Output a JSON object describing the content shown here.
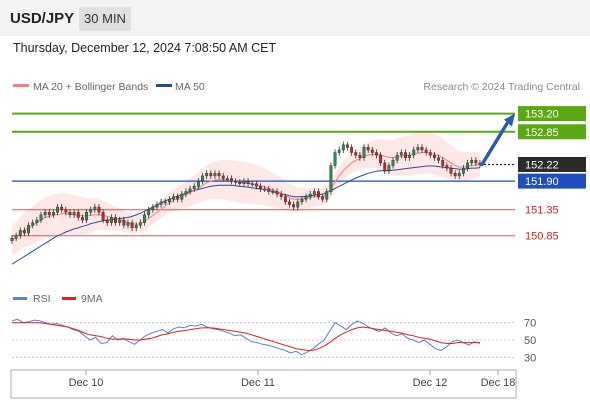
{
  "header": {
    "symbol": "USD/JPY",
    "timeframe": "30 MIN",
    "datetime": "Thursday, December 12, 2024 7:08:50 AM CET"
  },
  "legend": {
    "items": [
      {
        "label": "MA 20 + Bollinger Bands",
        "color": "#f08080"
      },
      {
        "label": "MA 50",
        "color": "#2a4d8f"
      }
    ],
    "credit": "Research © 2024 Trading Central"
  },
  "rsi_legend": {
    "items": [
      {
        "label": "RSI",
        "color": "#5b7fd6"
      },
      {
        "label": "9MA",
        "color": "#e02020"
      }
    ]
  },
  "chart_data": [
    {
      "type": "candlestick",
      "title": "",
      "ylim": [
        149.9,
        153.5
      ],
      "x_ticks": [
        "Dec 10",
        "Dec 11",
        "Dec 12",
        "Dec 18"
      ],
      "levels": [
        {
          "value": 153.2,
          "label": "153.20",
          "style": "resistance",
          "color": "#5aa812"
        },
        {
          "value": 152.85,
          "label": "152.85",
          "style": "resistance",
          "color": "#5aa812"
        },
        {
          "value": 152.22,
          "label": "152.22",
          "style": "current",
          "color": "#2b2b2b"
        },
        {
          "value": 151.9,
          "label": "151.90",
          "style": "pivot",
          "color": "#1f4fbf"
        },
        {
          "value": 151.35,
          "label": "151.35",
          "style": "support",
          "color": "#cc2222"
        },
        {
          "value": 150.85,
          "label": "150.85",
          "style": "support",
          "color": "#cc2222"
        }
      ],
      "forecast_arrow": {
        "from": 152.22,
        "to": 153.2,
        "color": "#2a5caa"
      },
      "candles_close": [
        150.8,
        150.85,
        150.95,
        150.9,
        151.05,
        151.1,
        151.15,
        151.25,
        151.3,
        151.25,
        151.3,
        151.4,
        151.35,
        151.3,
        151.25,
        151.3,
        151.2,
        151.15,
        151.3,
        151.35,
        151.4,
        151.3,
        151.15,
        151.1,
        151.2,
        151.1,
        151.15,
        151.05,
        151.1,
        151.0,
        151.05,
        151.1,
        151.25,
        151.35,
        151.4,
        151.45,
        151.5,
        151.5,
        151.55,
        151.6,
        151.55,
        151.65,
        151.7,
        151.75,
        151.8,
        151.9,
        152.0,
        152.05,
        152.0,
        152.05,
        152.0,
        151.95,
        151.95,
        151.9,
        151.88,
        151.85,
        151.9,
        151.85,
        151.85,
        151.8,
        151.75,
        151.75,
        151.7,
        151.7,
        151.65,
        151.6,
        151.5,
        151.45,
        151.4,
        151.5,
        151.55,
        151.6,
        151.65,
        151.7,
        151.6,
        151.55,
        151.7,
        152.2,
        152.45,
        152.5,
        152.6,
        152.55,
        152.45,
        152.4,
        152.35,
        152.55,
        152.5,
        152.45,
        152.4,
        152.25,
        152.1,
        152.2,
        152.3,
        152.4,
        152.45,
        152.35,
        152.4,
        152.5,
        152.55,
        152.5,
        152.45,
        152.4,
        152.35,
        152.3,
        152.2,
        152.15,
        152.05,
        152.0,
        152.05,
        152.15,
        152.25,
        152.3,
        152.25,
        152.22
      ],
      "ma20_approx": [
        150.75,
        150.82,
        150.9,
        150.96,
        151.0,
        151.05,
        151.1,
        151.15,
        151.2,
        151.22,
        151.24,
        151.26,
        151.27,
        151.27,
        151.26,
        151.25,
        151.24,
        151.23,
        151.23,
        151.24,
        151.25,
        151.25,
        151.24,
        151.22,
        151.2,
        151.18,
        151.16,
        151.13,
        151.1,
        151.08,
        151.07,
        151.08,
        151.12,
        151.18,
        151.24,
        151.3,
        151.36,
        151.42,
        151.48,
        151.53,
        151.57,
        151.6,
        151.64,
        151.68,
        151.72,
        151.77,
        151.82,
        151.87,
        151.9,
        151.92,
        151.93,
        151.93,
        151.92,
        151.91,
        151.89,
        151.88,
        151.87,
        151.86,
        151.85,
        151.83,
        151.81,
        151.79,
        151.76,
        151.73,
        151.7,
        151.66,
        151.62,
        151.58,
        151.55,
        151.55,
        151.56,
        151.57,
        151.58,
        151.6,
        151.6,
        151.6,
        151.65,
        151.75,
        151.88,
        152.0,
        152.1,
        152.18,
        152.25,
        152.3,
        152.33,
        152.38,
        152.4,
        152.41,
        152.42,
        152.41,
        152.38,
        152.36,
        152.35,
        152.36,
        152.38,
        152.39,
        152.4,
        152.42,
        152.44,
        152.45,
        152.45,
        152.44,
        152.42,
        152.39,
        152.35,
        152.3,
        152.25,
        152.2,
        152.17,
        152.17,
        152.18,
        152.2,
        152.21,
        152.22
      ],
      "ma50_approx": [
        150.3,
        150.35,
        150.4,
        150.45,
        150.5,
        150.55,
        150.6,
        150.65,
        150.7,
        150.75,
        150.8,
        150.85,
        150.88,
        150.92,
        150.95,
        150.98,
        151.0,
        151.03,
        151.05,
        151.08,
        151.1,
        151.12,
        151.14,
        151.15,
        151.16,
        151.17,
        151.18,
        151.19,
        151.2,
        151.22,
        151.25,
        151.28,
        151.32,
        151.36,
        151.4,
        151.44,
        151.48,
        151.52,
        151.55,
        151.58,
        151.61,
        151.64,
        151.67,
        151.7,
        151.72,
        151.74,
        151.76,
        151.78,
        151.8,
        151.81,
        151.82,
        151.82,
        151.82,
        151.82,
        151.81,
        151.8,
        151.79,
        151.78,
        151.77,
        151.76,
        151.75,
        151.74,
        151.72,
        151.7,
        151.68,
        151.66,
        151.64,
        151.62,
        151.6,
        151.6,
        151.6,
        151.61,
        151.62,
        151.63,
        151.64,
        151.65,
        151.68,
        151.72,
        151.76,
        151.8,
        151.84,
        151.88,
        151.92,
        151.96,
        151.99,
        152.02,
        152.05,
        152.07,
        152.09,
        152.1,
        152.1,
        152.1,
        152.11,
        152.12,
        152.13,
        152.14,
        152.15,
        152.16,
        152.17,
        152.18,
        152.19,
        152.19,
        152.19,
        152.18,
        152.17,
        152.16,
        152.15,
        152.14,
        152.13,
        152.13,
        152.14,
        152.15,
        152.15,
        152.16
      ]
    },
    {
      "type": "line",
      "title": "",
      "ylim": [
        20,
        80
      ],
      "y_ticks": [
        70,
        50,
        30
      ],
      "series": [
        {
          "name": "RSI",
          "color": "#5b7fd6",
          "values": [
            72,
            74,
            70,
            71,
            73,
            72,
            70,
            68,
            69,
            67,
            65,
            62,
            60,
            55,
            50,
            53,
            46,
            47,
            55,
            50,
            52,
            48,
            45,
            50,
            55,
            58,
            60,
            62,
            58,
            63,
            65,
            64,
            67,
            66,
            68,
            65,
            63,
            62,
            60,
            58,
            55,
            56,
            52,
            48,
            47,
            45,
            44,
            42,
            40,
            38,
            35,
            37,
            33,
            36,
            40,
            45,
            50,
            60,
            70,
            66,
            62,
            68,
            72,
            69,
            65,
            62,
            60,
            64,
            58,
            55,
            57,
            52,
            50,
            47,
            50,
            45,
            40,
            38,
            42,
            48,
            50,
            47,
            44,
            48,
            46
          ]
        },
        {
          "name": "9MA",
          "color": "#e02020",
          "values": [
            70,
            70,
            70,
            70,
            70,
            70,
            69,
            68,
            67,
            66,
            65,
            63,
            61,
            58,
            56,
            55,
            54,
            52,
            51,
            51,
            51,
            51,
            50,
            50,
            51,
            52,
            54,
            56,
            57,
            59,
            60,
            61,
            62,
            63,
            64,
            64,
            64,
            63,
            62,
            61,
            60,
            59,
            58,
            56,
            54,
            52,
            50,
            48,
            46,
            44,
            42,
            40,
            39,
            38,
            38,
            40,
            43,
            47,
            52,
            56,
            59,
            62,
            64,
            65,
            64,
            63,
            62,
            61,
            60,
            59,
            58,
            56,
            55,
            53,
            52,
            51,
            49,
            47,
            46,
            46,
            47,
            47,
            47,
            47,
            47
          ]
        }
      ]
    }
  ]
}
